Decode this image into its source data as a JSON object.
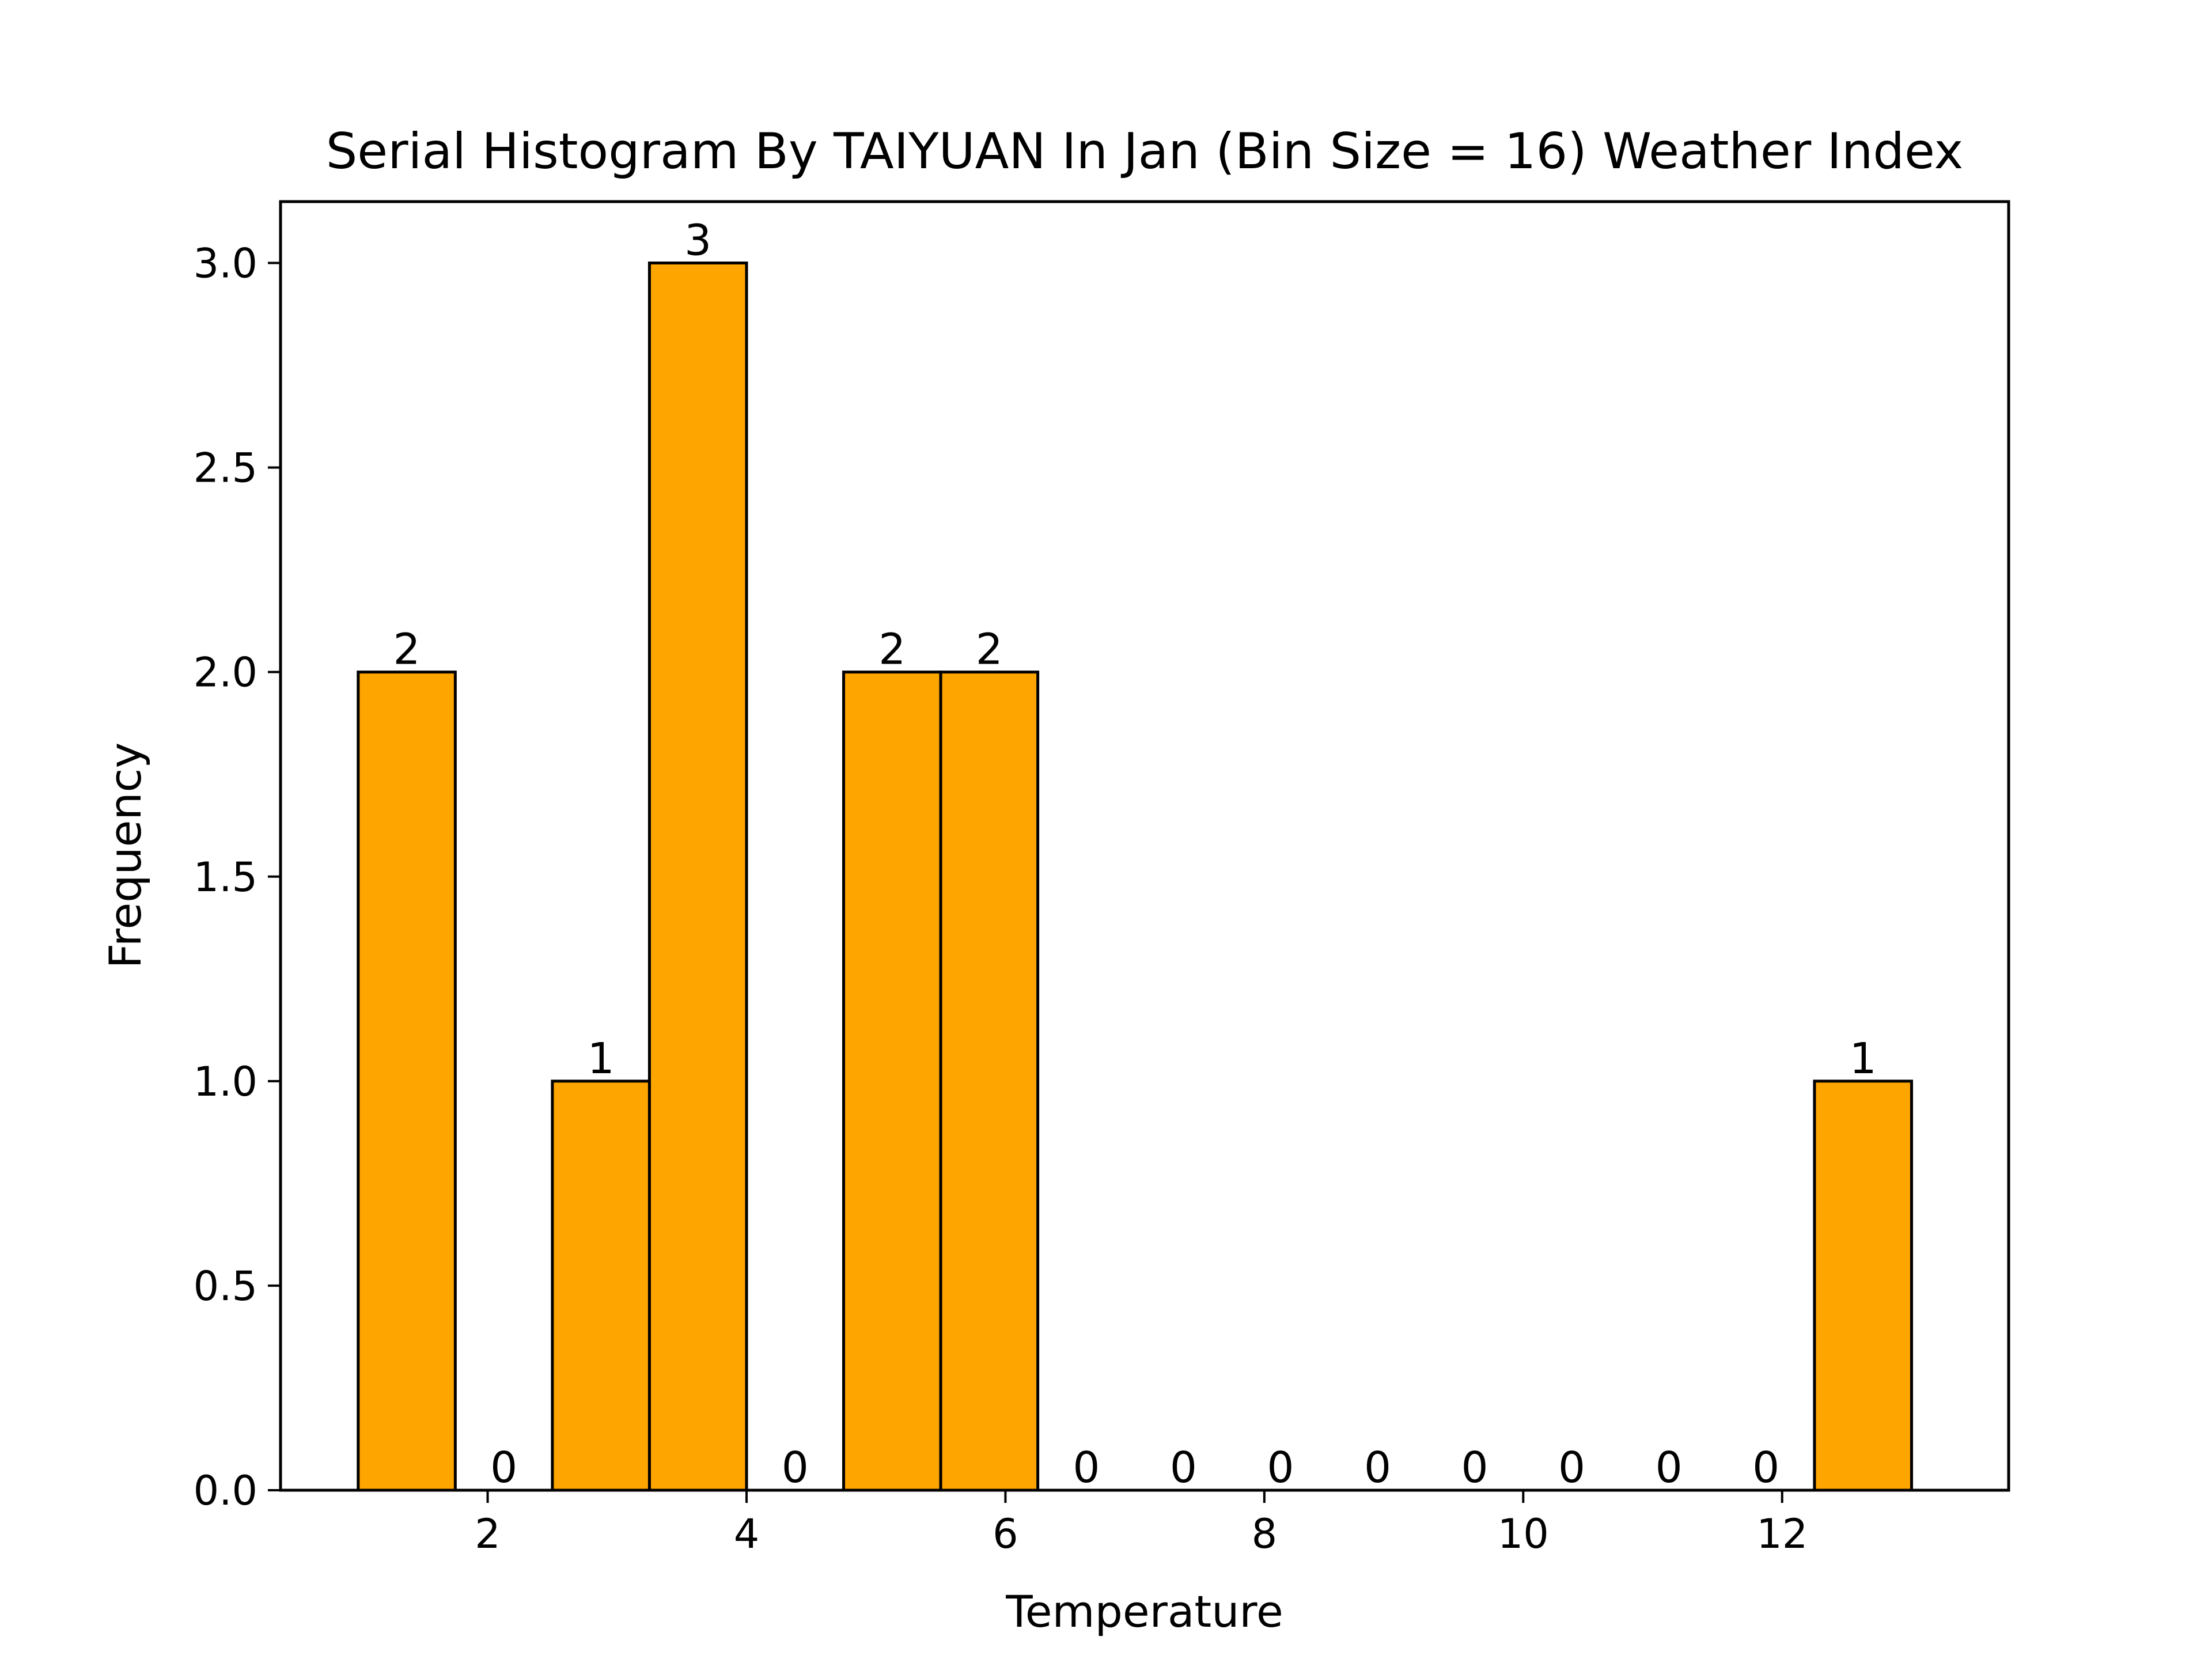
{
  "chart_data": {
    "type": "bar",
    "title": "Serial Histogram By TAIYUAN In Jan (Bin Size = 16) Weather Index",
    "xlabel": "Temperature",
    "ylabel": "Frequency",
    "xlim": [
      0.4,
      13.75
    ],
    "ylim": [
      0,
      3.15
    ],
    "xticks": [
      "2",
      "4",
      "6",
      "8",
      "10",
      "12"
    ],
    "yticks": [
      "0.0",
      "0.5",
      "1.0",
      "1.5",
      "2.0",
      "2.5",
      "3.0"
    ],
    "grid": false,
    "legend": "none",
    "bar_color": "#FFA500",
    "edge_color": "#000000",
    "bins": [
      {
        "x0": 1.0,
        "x1": 1.75,
        "value": 2,
        "label": "2"
      },
      {
        "x0": 1.75,
        "x1": 2.5,
        "value": 0,
        "label": "0"
      },
      {
        "x0": 2.5,
        "x1": 3.25,
        "value": 1,
        "label": "1"
      },
      {
        "x0": 3.25,
        "x1": 4.0,
        "value": 3,
        "label": "3"
      },
      {
        "x0": 4.0,
        "x1": 4.75,
        "value": 0,
        "label": "0"
      },
      {
        "x0": 4.75,
        "x1": 5.5,
        "value": 2,
        "label": "2"
      },
      {
        "x0": 5.5,
        "x1": 6.25,
        "value": 2,
        "label": "2"
      },
      {
        "x0": 6.25,
        "x1": 7.0,
        "value": 0,
        "label": "0"
      },
      {
        "x0": 7.0,
        "x1": 7.75,
        "value": 0,
        "label": "0"
      },
      {
        "x0": 7.75,
        "x1": 8.5,
        "value": 0,
        "label": "0"
      },
      {
        "x0": 8.5,
        "x1": 9.25,
        "value": 0,
        "label": "0"
      },
      {
        "x0": 9.25,
        "x1": 10.0,
        "value": 0,
        "label": "0"
      },
      {
        "x0": 10.0,
        "x1": 10.75,
        "value": 0,
        "label": "0"
      },
      {
        "x0": 10.75,
        "x1": 11.5,
        "value": 0,
        "label": "0"
      },
      {
        "x0": 11.5,
        "x1": 12.25,
        "value": 0,
        "label": "0"
      },
      {
        "x0": 12.25,
        "x1": 13.0,
        "value": 1,
        "label": "1"
      }
    ]
  }
}
